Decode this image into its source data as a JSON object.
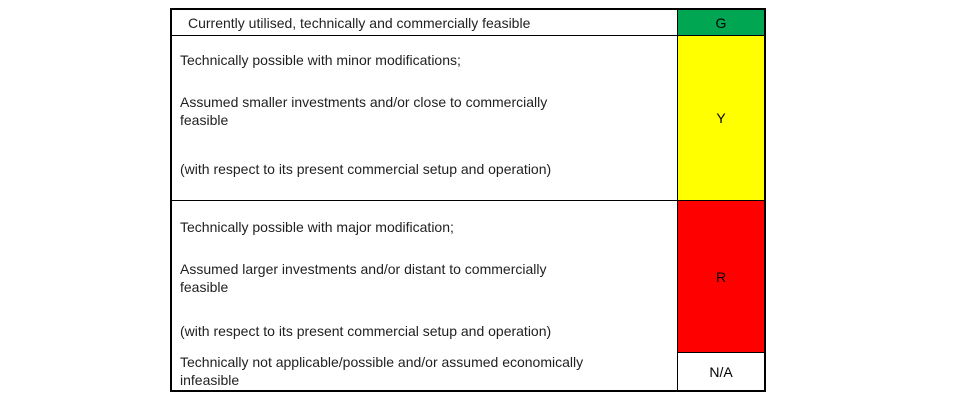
{
  "page": {
    "background_color": "#ffffff"
  },
  "legend_table": {
    "border_color": "#000000",
    "rows": [
      {
        "code": "G",
        "color": "#00A651",
        "description": "Currently utilised, technically and commercially feasible"
      },
      {
        "code": "Y",
        "color": "#FFFF00",
        "paragraphs": [
          "Technically possible with minor modifications;",
          "Assumed smaller investments and/or close to commercially\nfeasible",
          "(with respect to its present commercial setup and operation)"
        ]
      },
      {
        "code": "R",
        "color": "#FF0000",
        "paragraphs": [
          "Technically possible with major modification;",
          "Assumed larger investments and/or distant to commercially\nfeasible",
          "(with respect to its present commercial setup and operation)"
        ]
      },
      {
        "code": "N/A",
        "color": "#FFFFFF",
        "description": "Technically not applicable/possible and/or assumed economically\ninfeasible"
      }
    ]
  }
}
